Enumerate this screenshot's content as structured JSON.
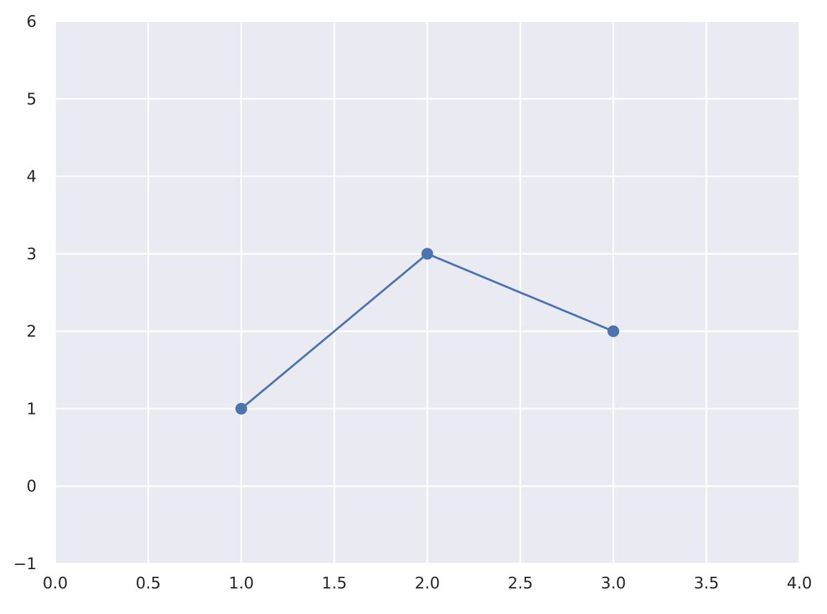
{
  "chart_data": {
    "type": "line",
    "title": "",
    "xlabel": "",
    "ylabel": "",
    "xlim": [
      0.0,
      4.0
    ],
    "ylim": [
      -1,
      6
    ],
    "x_ticks": [
      "0.0",
      "0.5",
      "1.0",
      "1.5",
      "2.0",
      "2.5",
      "3.0",
      "3.5",
      "4.0"
    ],
    "y_ticks": [
      "−1",
      "0",
      "1",
      "2",
      "3",
      "4",
      "5",
      "6"
    ],
    "grid": true,
    "legend": "none",
    "series": [
      {
        "x": [
          1,
          2,
          3
        ],
        "y": [
          1,
          3,
          2
        ],
        "color": "#4c72b0",
        "marker": "circle"
      }
    ],
    "colors": {
      "background": "#eaeaf2",
      "grid": "#ffffff",
      "text": "#262626"
    }
  }
}
